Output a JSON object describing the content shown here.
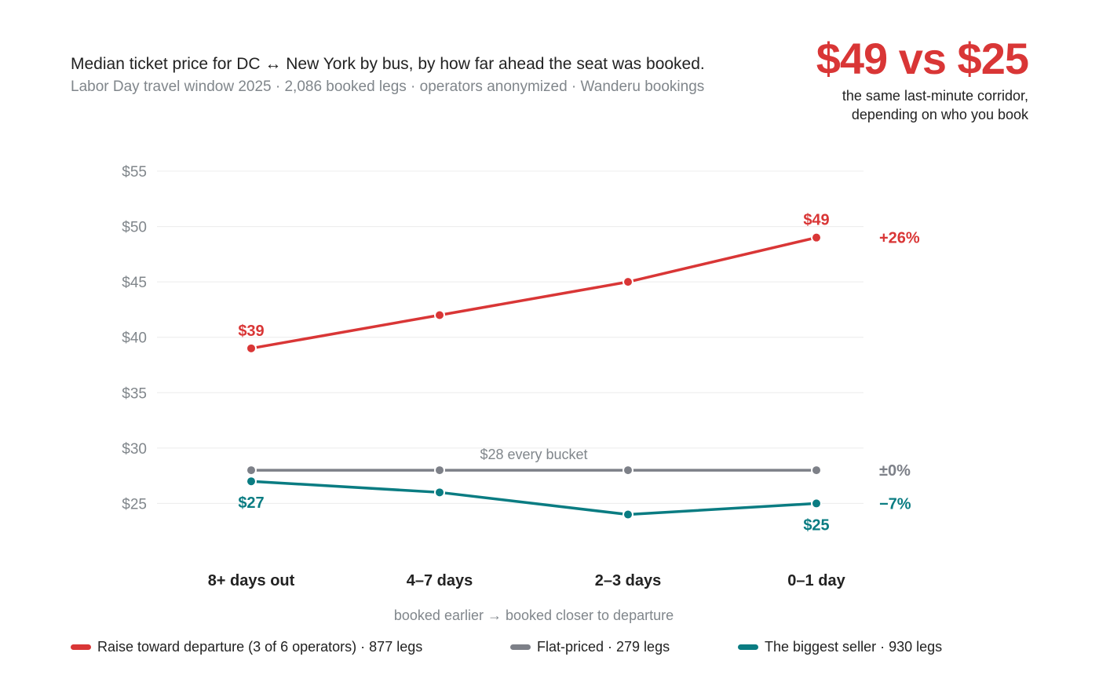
{
  "header": {
    "title": "Median ticket price for DC ↔ New York by bus, by how far ahead the seat was booked.",
    "subtitle": "Labor Day travel window 2025 · 2,086 booked legs · operators anonymized · Wanderu bookings"
  },
  "callout": {
    "headline": "$49 vs $25",
    "line1": "the same last-minute corridor,",
    "line2": "depending on who you book"
  },
  "chart_data": {
    "type": "line",
    "categories": [
      "8+ days out",
      "4–7 days",
      "2–3 days",
      "0–1 day"
    ],
    "xlabel": "booked earlier → booked closer to departure",
    "ylim": [
      20,
      55
    ],
    "yticks": [
      25,
      30,
      35,
      40,
      45,
      50,
      55
    ],
    "ytick_labels": [
      "$25",
      "$30",
      "$35",
      "$40",
      "$45",
      "$50",
      "$55"
    ],
    "grid": true,
    "series": [
      {
        "key": "raise",
        "name": "Raise toward departure (3 of 6 operators) · 877 legs",
        "color": "#d93636",
        "values": [
          39,
          42,
          45,
          49
        ],
        "start_label": "$39",
        "end_label": "$49",
        "change_label": "+26%"
      },
      {
        "key": "flat",
        "name": "Flat-priced · 279 legs",
        "color": "#7d8088",
        "values": [
          28,
          28,
          28,
          28
        ],
        "annotation": "$28 every bucket",
        "change_label": "±0%"
      },
      {
        "key": "biggest",
        "name": "The biggest seller · 930 legs",
        "color": "#0a7c82",
        "values": [
          27,
          26,
          24,
          25
        ],
        "start_label": "$27",
        "end_label": "$25",
        "change_label": "−7%"
      }
    ]
  }
}
